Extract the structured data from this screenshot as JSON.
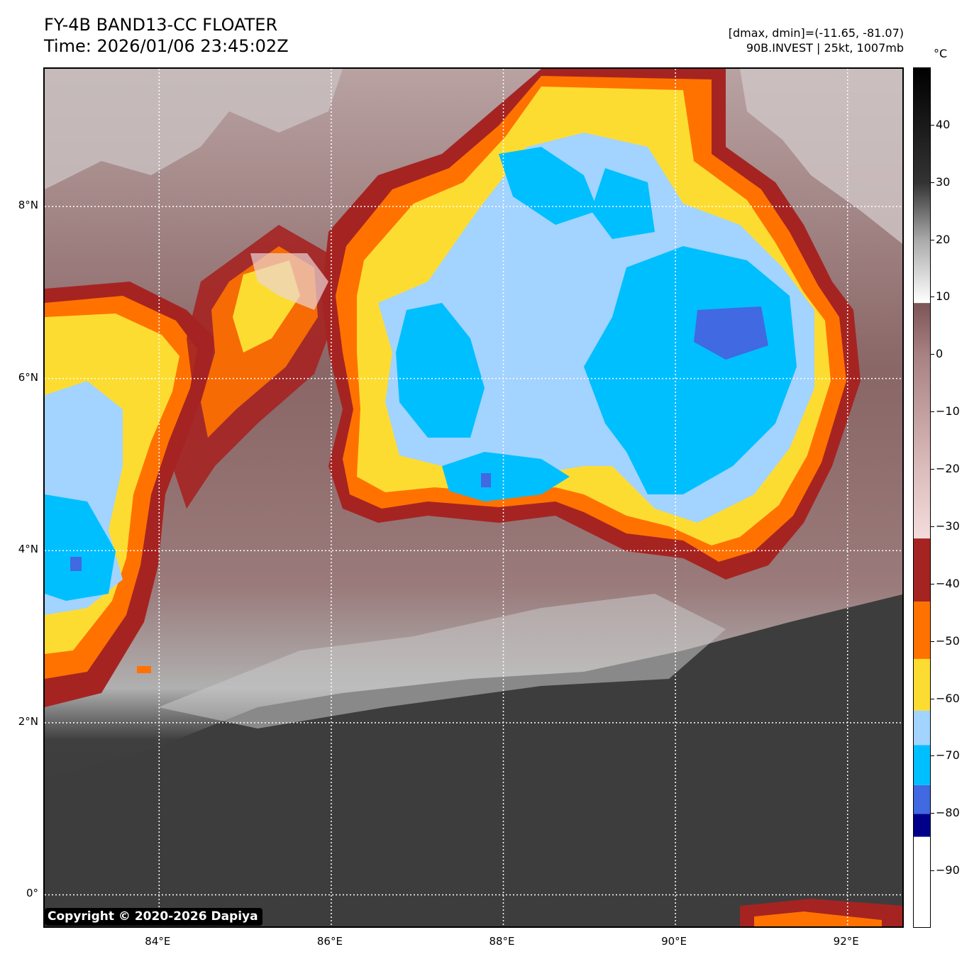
{
  "header": {
    "title_line1": "FY-4B BAND13-CC FLOATER",
    "title_line2": "Time: 2026/01/06 23:45:02Z",
    "info_line1": "[dmax, dmin]=(-11.65, -81.07)",
    "info_line2": "90B.INVEST | 25kt, 1007mb"
  },
  "map": {
    "lat_labels": [
      "8°N",
      "6°N",
      "4°N",
      "2°N",
      "0°"
    ],
    "lon_labels": [
      "84°E",
      "86°E",
      "88°E",
      "90°E",
      "92°E"
    ],
    "extent": {
      "lon_min": 82.67,
      "lon_max": 92.67,
      "lat_min": -0.4,
      "lat_max": 9.6
    },
    "gridlines": true,
    "gridline_style": "dotted white"
  },
  "colorbar": {
    "unit": "°C",
    "range": [
      -100,
      50
    ],
    "tick_values": [
      40,
      30,
      20,
      10,
      0,
      -10,
      -20,
      -30,
      -40,
      -50,
      -60,
      -70,
      -80,
      -90
    ],
    "tick_labels": [
      "40",
      "30",
      "20",
      "10",
      "0",
      "−10",
      "−20",
      "−30",
      "−40",
      "−50",
      "−60",
      "−70",
      "−80",
      "−90"
    ],
    "bands": [
      {
        "from": -100,
        "to": -84,
        "color": "#ffffff"
      },
      {
        "from": -84,
        "to": -80,
        "color": "#00008b"
      },
      {
        "from": -80,
        "to": -75,
        "color": "#4169e1"
      },
      {
        "from": -75,
        "to": -68,
        "color": "#00bfff"
      },
      {
        "from": -68,
        "to": -62,
        "color": "#a3d3ff"
      },
      {
        "from": -62,
        "to": -53,
        "color": "#fddc32"
      },
      {
        "from": -53,
        "to": -43,
        "color": "#ff7200"
      },
      {
        "from": -43,
        "to": -32,
        "color": "#a52422"
      }
    ],
    "gradient_stops": [
      {
        "value": -32,
        "color": "#f4dcdc"
      },
      {
        "value": -20,
        "color": "#dcbcbc"
      },
      {
        "value": 0,
        "color": "#a88282"
      },
      {
        "value": 9,
        "color": "#7c5656"
      },
      {
        "value": 9.1,
        "color": "#ffffff"
      },
      {
        "value": 20,
        "color": "#aaaaaa"
      },
      {
        "value": 30,
        "color": "#333333"
      },
      {
        "value": 50,
        "color": "#000000"
      }
    ]
  },
  "copyright": "Copyright © 2020-2026 Dapiya"
}
